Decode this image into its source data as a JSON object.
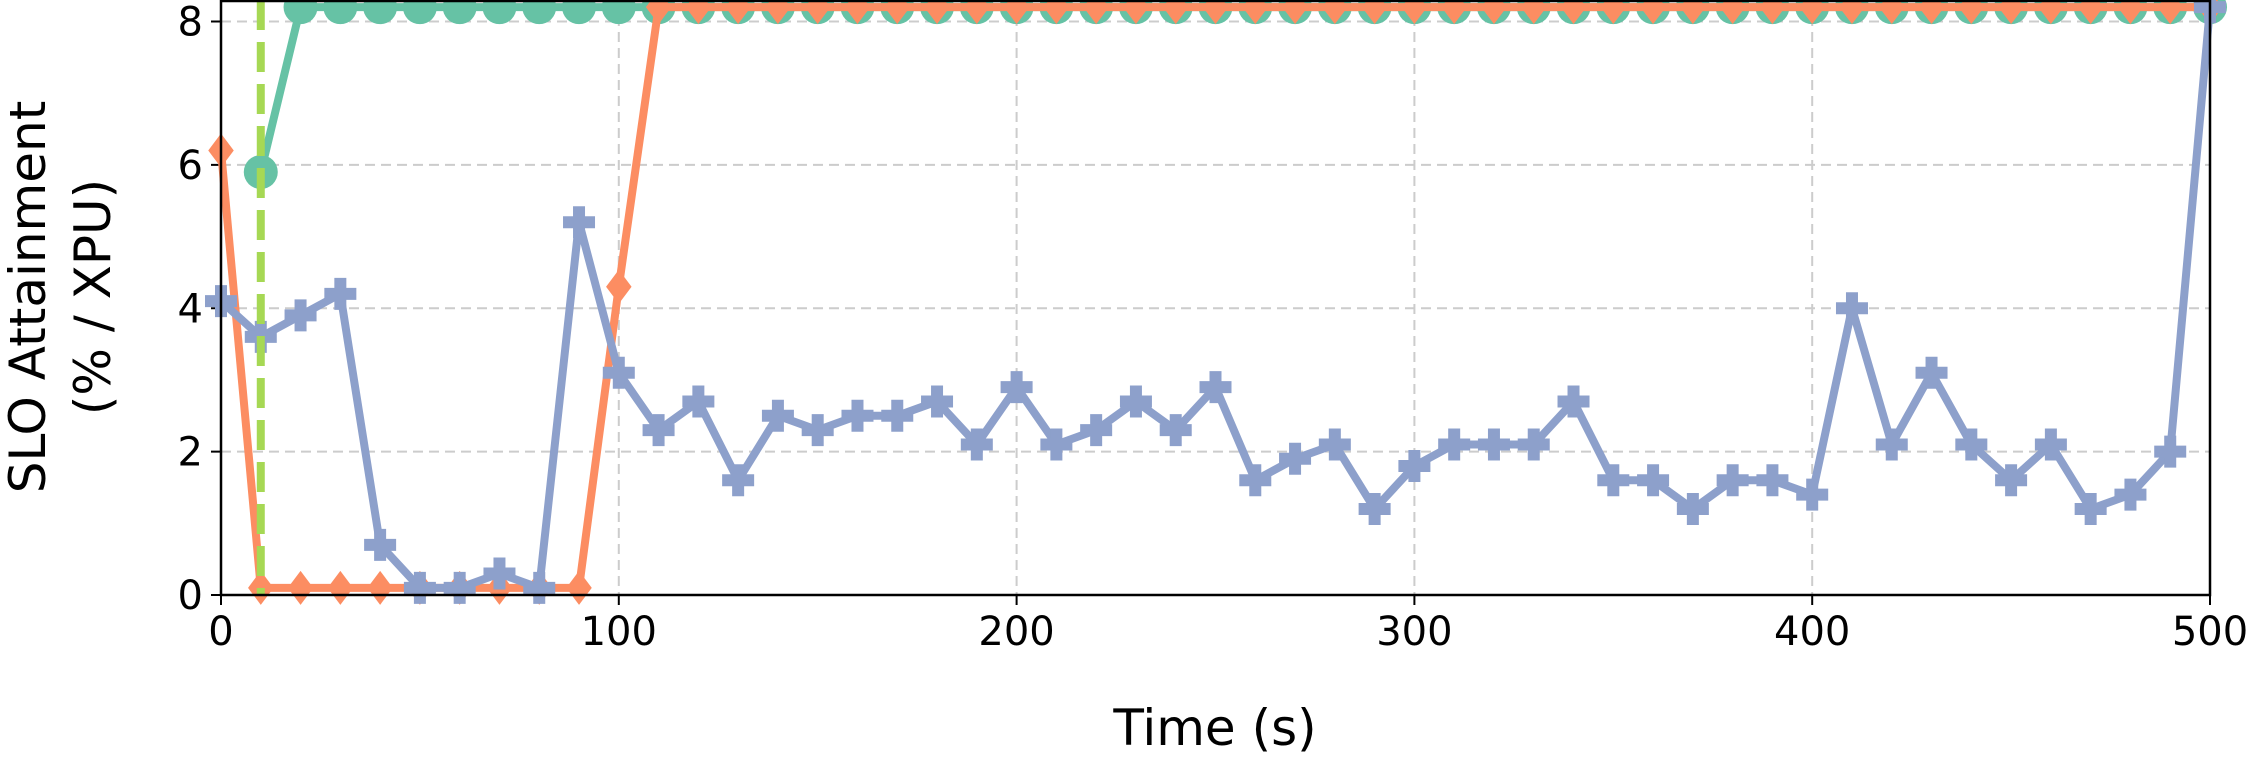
{
  "chart_data": {
    "type": "line",
    "xlabel": "Time (s)",
    "ylabel": [
      "SLO Attainment",
      "(% / XPU)"
    ],
    "x": [
      0,
      10,
      20,
      30,
      40,
      50,
      60,
      70,
      80,
      90,
      100,
      110,
      120,
      130,
      140,
      150,
      160,
      170,
      180,
      190,
      200,
      210,
      220,
      230,
      240,
      250,
      260,
      270,
      280,
      290,
      300,
      310,
      320,
      330,
      340,
      350,
      360,
      370,
      380,
      390,
      400,
      410,
      420,
      430,
      440,
      450,
      460,
      470,
      480,
      490,
      500
    ],
    "series": [
      {
        "color": "#66c2a5",
        "marker": "circle",
        "values": [
          null,
          5.9,
          8.2,
          8.2,
          8.2,
          8.2,
          8.2,
          8.2,
          8.2,
          8.2,
          8.2,
          8.2,
          8.2,
          8.2,
          8.2,
          8.2,
          8.2,
          8.2,
          8.2,
          8.2,
          8.2,
          8.2,
          8.2,
          8.2,
          8.2,
          8.2,
          8.2,
          8.2,
          8.2,
          8.2,
          8.2,
          8.2,
          8.2,
          8.2,
          8.2,
          8.2,
          8.2,
          8.2,
          8.2,
          8.2,
          8.2,
          8.2,
          8.2,
          8.2,
          8.2,
          8.2,
          8.2,
          8.2,
          8.2,
          8.2,
          8.2
        ]
      },
      {
        "color": "#fc8d62",
        "marker": "diamond",
        "values": [
          6.2,
          0.1,
          0.1,
          0.1,
          0.1,
          0.1,
          0.1,
          0.1,
          0.1,
          0.1,
          4.3,
          8.2,
          8.2,
          8.2,
          8.2,
          8.2,
          8.2,
          8.2,
          8.2,
          8.2,
          8.2,
          8.2,
          8.2,
          8.2,
          8.2,
          8.2,
          8.2,
          8.2,
          8.2,
          8.2,
          8.2,
          8.2,
          8.2,
          8.2,
          8.2,
          8.2,
          8.2,
          8.2,
          8.2,
          8.2,
          8.2,
          8.2,
          8.2,
          8.2,
          8.2,
          8.2,
          8.2,
          8.2,
          8.2,
          8.2,
          8.2
        ]
      },
      {
        "color": "#8da0cb",
        "marker": "plus",
        "values": [
          4.1,
          3.6,
          3.9,
          4.2,
          0.7,
          0.1,
          0.1,
          0.3,
          0.1,
          5.2,
          3.1,
          2.3,
          2.7,
          1.6,
          2.5,
          2.3,
          2.5,
          2.5,
          2.7,
          2.1,
          2.9,
          2.1,
          2.3,
          2.7,
          2.3,
          2.9,
          1.6,
          1.9,
          2.1,
          1.2,
          1.8,
          2.1,
          2.1,
          2.1,
          2.7,
          1.6,
          1.6,
          1.2,
          1.6,
          1.6,
          1.4,
          4.0,
          2.1,
          3.1,
          2.1,
          1.6,
          2.1,
          1.2,
          1.4,
          2.0,
          8.2
        ]
      }
    ],
    "vline": {
      "x": 10,
      "color": "#a6d854"
    },
    "xlim": [
      0,
      500
    ],
    "xticks": [
      0,
      100,
      200,
      300,
      400,
      500
    ],
    "ylim": [
      0,
      8.3
    ],
    "yticks": [
      0,
      2,
      4,
      6,
      8
    ],
    "grid": true
  }
}
